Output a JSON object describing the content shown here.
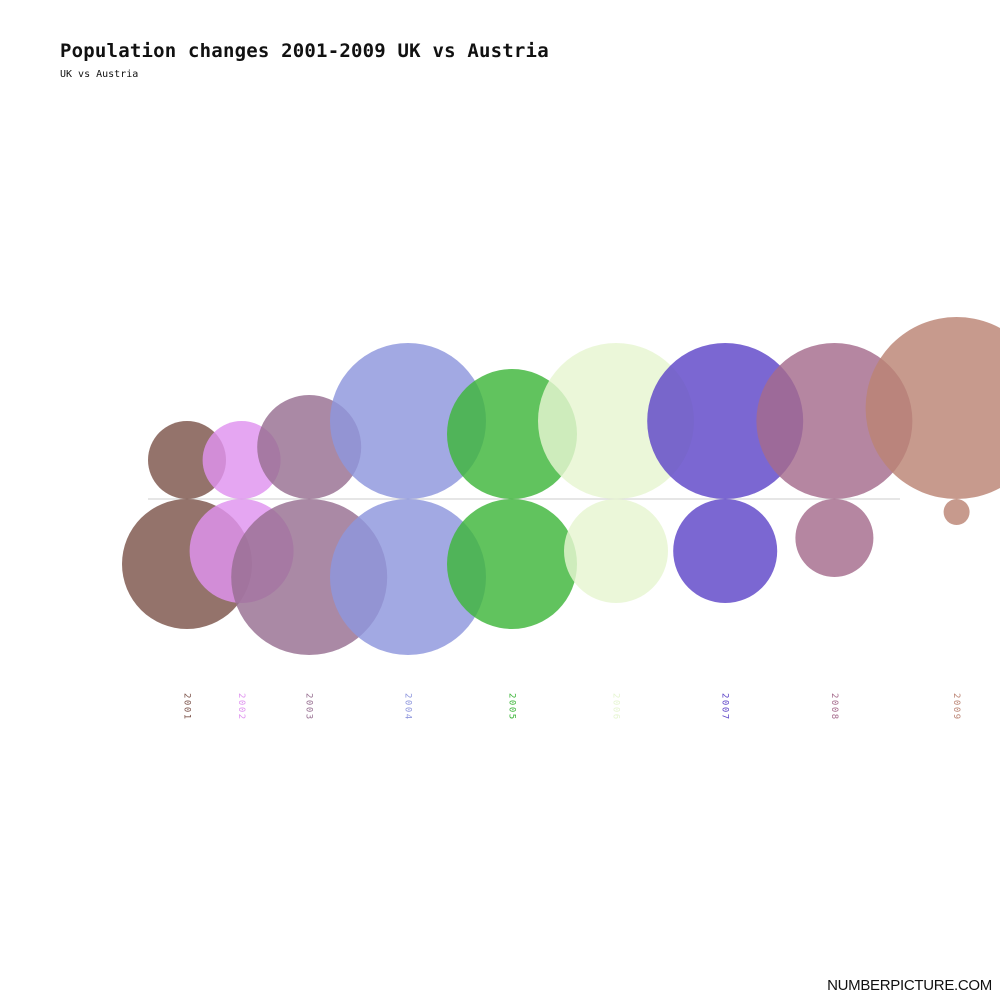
{
  "header": {
    "title": "Population changes 2001-2009 UK vs Austria",
    "subtitle": "UK vs Austria"
  },
  "footer": {
    "brand": "NUMBERPICTURE.COM"
  },
  "chart_data": {
    "type": "bubble",
    "title": "Population changes 2001-2009 UK vs Austria",
    "subtitle": "UK vs Austria",
    "categories": [
      "2001",
      "2002",
      "2003",
      "2004",
      "2005",
      "2006",
      "2007",
      "2008",
      "2009"
    ],
    "colors": [
      "#7d544b",
      "#df93ef",
      "#976f91",
      "#8e96dd",
      "#3eb63b",
      "#e6f5d1",
      "#5e45c8",
      "#a56b8c",
      "#bb8474"
    ],
    "series": [
      {
        "values": [
          0.39,
          0.39,
          0.52,
          0.78,
          0.65,
          0.78,
          0.78,
          0.78,
          0.91
        ]
      },
      {
        "values": [
          0.65,
          0.52,
          0.78,
          0.78,
          0.65,
          0.52,
          0.52,
          0.39,
          0.13
        ]
      }
    ]
  }
}
